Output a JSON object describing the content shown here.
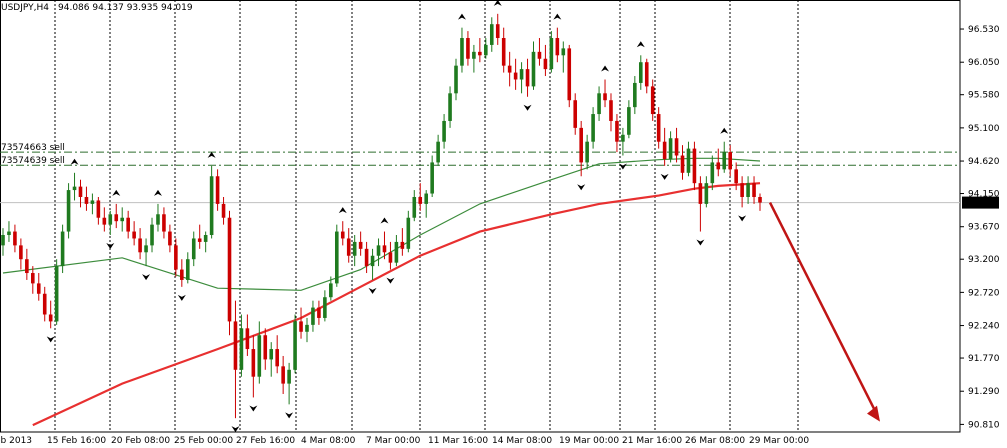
{
  "header": {
    "symbol": "USDJPY,H4",
    "ohlc": "94.086 94.137 93.935 94.019"
  },
  "orders": [
    {
      "label": "73574663 sell",
      "price": 94.75
    },
    {
      "label": "73574639 sell",
      "price": 94.56
    }
  ],
  "colors": {
    "background": "#ffffff",
    "bull_candle": "#1f7a1f",
    "bear_candle": "#cc0000",
    "ma_long": "#e83030",
    "ma_short": "#3c8c3c",
    "order_line": "#2e6e2e",
    "price_badge": "#000000",
    "arrow": "#c01515"
  },
  "chart_data": {
    "type": "candlestick",
    "price_axis": {
      "ticks": [
        "96.530",
        "96.050",
        "95.580",
        "95.100",
        "94.620",
        "94.150",
        "93.670",
        "93.200",
        "92.720",
        "92.240",
        "91.770",
        "91.290",
        "90.810"
      ],
      "range": [
        90.7,
        96.95
      ],
      "current_price": "94.019"
    },
    "time_axis": {
      "labels": [
        "eb 2013",
        "15 Feb 16:00",
        "20 Feb 08:00",
        "25 Feb 00:00",
        "27 Feb 16:00",
        "4 Mar 08:00",
        "7 Mar 00:00",
        "11 Mar 16:00",
        "14 Mar 08:00",
        "19 Mar 00:00",
        "21 Mar 16:00",
        "26 Mar 08:00",
        "29 Mar 00:00"
      ]
    },
    "candles": [
      [
        93.4,
        93.65,
        93.25,
        93.55
      ],
      [
        93.55,
        93.75,
        93.45,
        93.6
      ],
      [
        93.6,
        93.7,
        93.3,
        93.4
      ],
      [
        93.4,
        93.5,
        93.05,
        93.2
      ],
      [
        93.2,
        93.35,
        92.9,
        93.0
      ],
      [
        93.0,
        93.1,
        92.7,
        92.85
      ],
      [
        92.85,
        93.0,
        92.6,
        92.7
      ],
      [
        92.7,
        92.8,
        92.3,
        92.4
      ],
      [
        92.4,
        92.6,
        92.2,
        92.3
      ],
      [
        92.3,
        93.2,
        92.25,
        93.1
      ],
      [
        93.1,
        93.7,
        93.0,
        93.6
      ],
      [
        93.6,
        94.3,
        93.5,
        94.2
      ],
      [
        94.2,
        94.45,
        94.05,
        94.25
      ],
      [
        94.25,
        94.35,
        93.95,
        94.1
      ],
      [
        94.1,
        94.25,
        93.9,
        94.0
      ],
      [
        94.0,
        94.15,
        93.85,
        94.05
      ],
      [
        94.05,
        94.1,
        93.7,
        93.8
      ],
      [
        93.8,
        93.95,
        93.6,
        93.7
      ],
      [
        93.7,
        93.9,
        93.55,
        93.85
      ],
      [
        93.85,
        94.0,
        93.65,
        93.75
      ],
      [
        93.75,
        93.95,
        93.6,
        93.8
      ],
      [
        93.8,
        93.9,
        93.5,
        93.6
      ],
      [
        93.6,
        93.75,
        93.4,
        93.5
      ],
      [
        93.5,
        93.65,
        93.2,
        93.3
      ],
      [
        93.3,
        93.5,
        93.1,
        93.4
      ],
      [
        93.4,
        93.8,
        93.3,
        93.7
      ],
      [
        93.7,
        94.0,
        93.6,
        93.85
      ],
      [
        93.85,
        93.95,
        93.5,
        93.6
      ],
      [
        93.6,
        93.7,
        93.3,
        93.4
      ],
      [
        93.4,
        93.5,
        92.95,
        93.05
      ],
      [
        93.05,
        93.2,
        92.8,
        92.9
      ],
      [
        92.9,
        93.3,
        92.85,
        93.2
      ],
      [
        93.2,
        93.6,
        93.1,
        93.5
      ],
      [
        93.5,
        93.7,
        93.35,
        93.45
      ],
      [
        93.45,
        93.6,
        93.3,
        93.55
      ],
      [
        93.55,
        94.55,
        93.5,
        94.4
      ],
      [
        94.4,
        94.5,
        93.9,
        94.0
      ],
      [
        94.0,
        94.1,
        93.7,
        93.8
      ],
      [
        93.8,
        93.9,
        92.1,
        92.3
      ],
      [
        92.3,
        92.6,
        90.9,
        91.6
      ],
      [
        91.6,
        92.4,
        91.5,
        92.2
      ],
      [
        92.2,
        92.4,
        91.8,
        91.9
      ],
      [
        91.9,
        92.1,
        91.2,
        91.5
      ],
      [
        91.5,
        92.3,
        91.4,
        92.1
      ],
      [
        92.1,
        92.2,
        91.6,
        91.75
      ],
      [
        91.75,
        92.0,
        91.5,
        91.9
      ],
      [
        91.9,
        92.1,
        91.55,
        91.65
      ],
      [
        91.65,
        91.8,
        91.25,
        91.4
      ],
      [
        91.4,
        91.7,
        91.1,
        91.6
      ],
      [
        91.6,
        92.4,
        91.55,
        92.3
      ],
      [
        92.3,
        92.5,
        92.05,
        92.15
      ],
      [
        92.15,
        92.35,
        92.0,
        92.25
      ],
      [
        92.25,
        92.6,
        92.15,
        92.5
      ],
      [
        92.5,
        92.6,
        92.25,
        92.35
      ],
      [
        92.35,
        92.75,
        92.3,
        92.65
      ],
      [
        92.65,
        92.95,
        92.6,
        92.85
      ],
      [
        92.85,
        93.7,
        92.8,
        93.6
      ],
      [
        93.6,
        93.75,
        93.4,
        93.5
      ],
      [
        93.5,
        93.65,
        93.15,
        93.25
      ],
      [
        93.25,
        93.55,
        93.1,
        93.45
      ],
      [
        93.45,
        93.6,
        93.25,
        93.35
      ],
      [
        93.35,
        93.45,
        93.0,
        93.1
      ],
      [
        93.1,
        93.35,
        92.9,
        93.25
      ],
      [
        93.25,
        93.5,
        93.1,
        93.4
      ],
      [
        93.4,
        93.6,
        93.2,
        93.3
      ],
      [
        93.3,
        93.45,
        93.05,
        93.15
      ],
      [
        93.15,
        93.55,
        93.1,
        93.45
      ],
      [
        93.45,
        93.65,
        93.25,
        93.35
      ],
      [
        93.35,
        93.9,
        93.3,
        93.8
      ],
      [
        93.8,
        94.2,
        93.75,
        94.1
      ],
      [
        94.1,
        94.3,
        93.9,
        94.0
      ],
      [
        94.0,
        94.2,
        93.8,
        94.15
      ],
      [
        94.15,
        94.7,
        94.1,
        94.6
      ],
      [
        94.6,
        95.0,
        94.55,
        94.9
      ],
      [
        94.9,
        95.3,
        94.8,
        95.2
      ],
      [
        95.2,
        95.7,
        95.1,
        95.6
      ],
      [
        95.6,
        96.1,
        95.5,
        96.0
      ],
      [
        96.0,
        96.55,
        95.9,
        96.4
      ],
      [
        96.4,
        96.5,
        96.0,
        96.1
      ],
      [
        96.1,
        96.3,
        95.9,
        96.2
      ],
      [
        96.2,
        96.4,
        96.05,
        96.15
      ],
      [
        96.15,
        96.4,
        96.1,
        96.3
      ],
      [
        96.3,
        96.7,
        96.2,
        96.6
      ],
      [
        96.6,
        96.75,
        96.3,
        96.4
      ],
      [
        96.4,
        96.55,
        95.9,
        96.0
      ],
      [
        96.0,
        96.2,
        95.7,
        95.9
      ],
      [
        95.9,
        96.1,
        95.65,
        95.8
      ],
      [
        95.8,
        96.05,
        95.6,
        95.95
      ],
      [
        95.95,
        96.1,
        95.55,
        95.7
      ],
      [
        95.7,
        96.35,
        95.65,
        96.2
      ],
      [
        96.2,
        96.4,
        96.0,
        96.1
      ],
      [
        96.1,
        96.3,
        95.85,
        95.95
      ],
      [
        95.95,
        96.5,
        95.9,
        96.4
      ],
      [
        96.4,
        96.55,
        96.05,
        96.15
      ],
      [
        96.15,
        96.35,
        95.9,
        96.25
      ],
      [
        96.25,
        96.3,
        95.4,
        95.5
      ],
      [
        95.5,
        95.6,
        95.0,
        95.1
      ],
      [
        95.1,
        95.2,
        94.4,
        94.6
      ],
      [
        94.6,
        95.0,
        94.5,
        94.9
      ],
      [
        94.9,
        95.4,
        94.8,
        95.3
      ],
      [
        95.3,
        95.7,
        95.2,
        95.6
      ],
      [
        95.6,
        95.8,
        95.4,
        95.5
      ],
      [
        95.5,
        95.6,
        95.05,
        95.2
      ],
      [
        95.2,
        95.3,
        94.75,
        94.9
      ],
      [
        94.9,
        95.1,
        94.7,
        95.0
      ],
      [
        95.0,
        95.5,
        94.95,
        95.4
      ],
      [
        95.4,
        95.85,
        95.3,
        95.75
      ],
      [
        95.75,
        96.15,
        95.65,
        96.05
      ],
      [
        96.05,
        96.1,
        95.6,
        95.7
      ],
      [
        95.7,
        95.8,
        95.2,
        95.3
      ],
      [
        95.3,
        95.4,
        94.8,
        94.9
      ],
      [
        94.9,
        95.1,
        94.55,
        94.65
      ],
      [
        94.65,
        95.05,
        94.6,
        94.95
      ],
      [
        94.95,
        95.1,
        94.6,
        94.7
      ],
      [
        94.7,
        94.85,
        94.35,
        94.45
      ],
      [
        94.45,
        94.9,
        94.4,
        94.8
      ],
      [
        94.8,
        94.9,
        94.2,
        94.3
      ],
      [
        94.3,
        94.4,
        93.6,
        94.0
      ],
      [
        94.0,
        94.4,
        93.95,
        94.3
      ],
      [
        94.3,
        94.7,
        94.2,
        94.6
      ],
      [
        94.6,
        94.8,
        94.4,
        94.5
      ],
      [
        94.5,
        94.9,
        94.45,
        94.75
      ],
      [
        94.75,
        94.85,
        94.4,
        94.5
      ],
      [
        94.5,
        94.6,
        94.2,
        94.3
      ],
      [
        94.3,
        94.4,
        93.95,
        94.1
      ],
      [
        94.1,
        94.4,
        94.0,
        94.3
      ],
      [
        94.3,
        94.4,
        94.0,
        94.1
      ],
      [
        94.1,
        94.15,
        93.9,
        94.02
      ]
    ],
    "moving_averages": [
      {
        "x": [
          0,
          20,
          36,
          50,
          60,
          70,
          80,
          92,
          100,
          110,
          116,
          120,
          127
        ],
        "values": [
          93.0,
          93.22,
          92.78,
          92.75,
          93.05,
          93.55,
          94.0,
          94.35,
          94.58,
          94.64,
          94.66,
          94.66,
          94.62
        ]
      },
      {
        "x": [
          5,
          20,
          36,
          50,
          60,
          70,
          80,
          92,
          100,
          110,
          116,
          120,
          127
        ],
        "values": [
          90.8,
          91.4,
          91.9,
          92.35,
          92.8,
          93.25,
          93.6,
          93.85,
          94.0,
          94.12,
          94.22,
          94.26,
          94.3
        ]
      }
    ],
    "forecast_arrow": {
      "from": 94.02,
      "to": 90.85
    },
    "grid": true
  }
}
